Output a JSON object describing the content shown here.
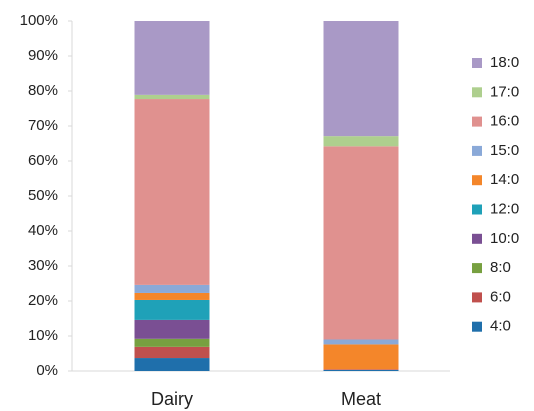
{
  "chart_data": {
    "type": "stacked_bar",
    "categories": [
      "Dairy",
      "Meat"
    ],
    "series": [
      {
        "name": "4:0",
        "color": "#1f6fab",
        "values": [
          3.7,
          0.3
        ]
      },
      {
        "name": "6:0",
        "color": "#c0504d",
        "values": [
          3.2,
          0.2
        ]
      },
      {
        "name": "8:0",
        "color": "#77a040",
        "values": [
          2.3,
          0
        ]
      },
      {
        "name": "10:0",
        "color": "#7a4f93",
        "values": [
          5.4,
          0
        ]
      },
      {
        "name": "12:0",
        "color": "#1fa1b8",
        "values": [
          5.7,
          0
        ]
      },
      {
        "name": "14:0",
        "color": "#f4862a",
        "values": [
          2,
          7.1
        ]
      },
      {
        "name": "15:0",
        "color": "#8aa9d8",
        "values": [
          2.3,
          1.4
        ]
      },
      {
        "name": "16:0",
        "color": "#e0918f",
        "values": [
          53.1,
          55.2
        ]
      },
      {
        "name": "17:0",
        "color": "#aecf8e",
        "values": [
          1.2,
          2.9
        ]
      },
      {
        "name": "18:0",
        "color": "#a999c6",
        "values": [
          21.1,
          32.9
        ]
      }
    ],
    "ylim": [
      0,
      100
    ],
    "yticks": [
      {
        "value": 0,
        "label": "0%"
      },
      {
        "value": 10,
        "label": "10%"
      },
      {
        "value": 20,
        "label": "20%"
      },
      {
        "value": 30,
        "label": "30%"
      },
      {
        "value": 40,
        "label": "40%"
      },
      {
        "value": 50,
        "label": "50%"
      },
      {
        "value": 60,
        "label": "60%"
      },
      {
        "value": 70,
        "label": "70%"
      },
      {
        "value": 80,
        "label": "80%"
      },
      {
        "value": 90,
        "label": "90%"
      },
      {
        "value": 100,
        "label": "100%"
      }
    ],
    "legend": "right"
  }
}
